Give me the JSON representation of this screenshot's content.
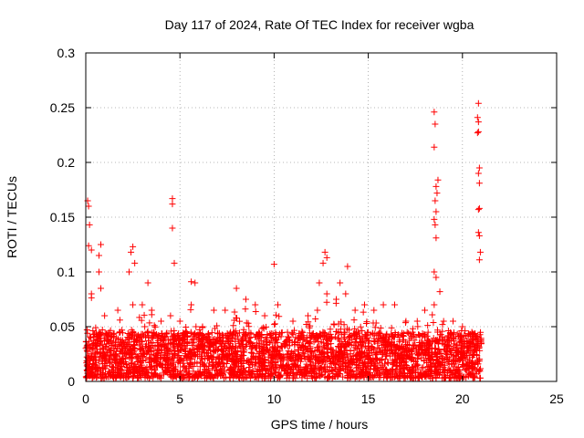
{
  "chart_data": {
    "type": "scatter",
    "title": "Day 117 of 2024, Rate Of TEC Index for receiver wgba",
    "xlabel": "GPS time / hours",
    "ylabel": "ROTI / TECUs",
    "xlim": [
      0,
      25
    ],
    "ylim": [
      0,
      0.3
    ],
    "xticks": [
      0,
      5,
      10,
      15,
      20,
      25
    ],
    "yticks": [
      0,
      0.05,
      0.1,
      0.15,
      0.2,
      0.25,
      0.3
    ],
    "xtick_labels": [
      "0",
      "5",
      "10",
      "15",
      "20",
      "25"
    ],
    "ytick_labels": [
      "0",
      "0.05",
      "0.1",
      "0.15",
      "0.2",
      "0.25",
      "0.3"
    ],
    "grid": true,
    "marker": "+",
    "color": "#ff0000",
    "series": [
      {
        "name": "ROTI",
        "notable_points": [
          {
            "x": 0.1,
            "y": 0.165
          },
          {
            "x": 0.15,
            "y": 0.16
          },
          {
            "x": 0.2,
            "y": 0.143
          },
          {
            "x": 0.15,
            "y": 0.124
          },
          {
            "x": 0.3,
            "y": 0.12
          },
          {
            "x": 0.8,
            "y": 0.125
          },
          {
            "x": 0.7,
            "y": 0.115
          },
          {
            "x": 0.7,
            "y": 0.1
          },
          {
            "x": 2.5,
            "y": 0.123
          },
          {
            "x": 2.4,
            "y": 0.118
          },
          {
            "x": 2.6,
            "y": 0.108
          },
          {
            "x": 2.3,
            "y": 0.1
          },
          {
            "x": 3.3,
            "y": 0.09
          },
          {
            "x": 4.6,
            "y": 0.167
          },
          {
            "x": 4.6,
            "y": 0.162
          },
          {
            "x": 4.6,
            "y": 0.14
          },
          {
            "x": 4.7,
            "y": 0.108
          },
          {
            "x": 5.6,
            "y": 0.091
          },
          {
            "x": 5.8,
            "y": 0.09
          },
          {
            "x": 10.0,
            "y": 0.107
          },
          {
            "x": 12.7,
            "y": 0.118
          },
          {
            "x": 12.8,
            "y": 0.113
          },
          {
            "x": 12.6,
            "y": 0.108
          },
          {
            "x": 12.4,
            "y": 0.09
          },
          {
            "x": 13.9,
            "y": 0.105
          },
          {
            "x": 13.5,
            "y": 0.09
          },
          {
            "x": 18.5,
            "y": 0.246
          },
          {
            "x": 18.55,
            "y": 0.235
          },
          {
            "x": 18.5,
            "y": 0.214
          },
          {
            "x": 18.7,
            "y": 0.184
          },
          {
            "x": 18.6,
            "y": 0.178
          },
          {
            "x": 18.65,
            "y": 0.172
          },
          {
            "x": 18.55,
            "y": 0.165
          },
          {
            "x": 18.6,
            "y": 0.155
          },
          {
            "x": 18.5,
            "y": 0.148
          },
          {
            "x": 18.55,
            "y": 0.143
          },
          {
            "x": 18.6,
            "y": 0.131
          },
          {
            "x": 18.5,
            "y": 0.1
          },
          {
            "x": 18.6,
            "y": 0.095
          },
          {
            "x": 18.8,
            "y": 0.082
          },
          {
            "x": 20.85,
            "y": 0.254
          },
          {
            "x": 20.8,
            "y": 0.241
          },
          {
            "x": 20.85,
            "y": 0.237
          },
          {
            "x": 20.85,
            "y": 0.228
          },
          {
            "x": 20.8,
            "y": 0.227
          },
          {
            "x": 20.9,
            "y": 0.195
          },
          {
            "x": 20.85,
            "y": 0.19
          },
          {
            "x": 20.9,
            "y": 0.181
          },
          {
            "x": 20.9,
            "y": 0.158
          },
          {
            "x": 20.85,
            "y": 0.157
          },
          {
            "x": 20.85,
            "y": 0.136
          },
          {
            "x": 20.9,
            "y": 0.133
          },
          {
            "x": 20.95,
            "y": 0.118
          },
          {
            "x": 20.9,
            "y": 0.111
          }
        ],
        "dense_cloud": {
          "x_range": [
            0,
            21.0
          ],
          "y_baseline": 0.02,
          "y_band": [
            0.003,
            0.045
          ],
          "local_maxima": [
            {
              "x": 0.3,
              "y": 0.08
            },
            {
              "x": 0.8,
              "y": 0.085
            },
            {
              "x": 1.0,
              "y": 0.06
            },
            {
              "x": 1.7,
              "y": 0.065
            },
            {
              "x": 2.5,
              "y": 0.07
            },
            {
              "x": 3.0,
              "y": 0.07
            },
            {
              "x": 3.5,
              "y": 0.065
            },
            {
              "x": 4.0,
              "y": 0.055
            },
            {
              "x": 4.5,
              "y": 0.06
            },
            {
              "x": 5.0,
              "y": 0.055
            },
            {
              "x": 5.6,
              "y": 0.07
            },
            {
              "x": 6.2,
              "y": 0.05
            },
            {
              "x": 6.8,
              "y": 0.065
            },
            {
              "x": 7.4,
              "y": 0.065
            },
            {
              "x": 8.0,
              "y": 0.085
            },
            {
              "x": 8.5,
              "y": 0.075
            },
            {
              "x": 9.0,
              "y": 0.07
            },
            {
              "x": 9.5,
              "y": 0.06
            },
            {
              "x": 10.2,
              "y": 0.07
            },
            {
              "x": 11.0,
              "y": 0.055
            },
            {
              "x": 11.8,
              "y": 0.06
            },
            {
              "x": 12.3,
              "y": 0.065
            },
            {
              "x": 12.8,
              "y": 0.08
            },
            {
              "x": 13.3,
              "y": 0.075
            },
            {
              "x": 13.8,
              "y": 0.08
            },
            {
              "x": 14.3,
              "y": 0.065
            },
            {
              "x": 14.8,
              "y": 0.07
            },
            {
              "x": 15.3,
              "y": 0.065
            },
            {
              "x": 15.8,
              "y": 0.07
            },
            {
              "x": 16.4,
              "y": 0.07
            },
            {
              "x": 17.0,
              "y": 0.055
            },
            {
              "x": 17.6,
              "y": 0.055
            },
            {
              "x": 18.0,
              "y": 0.065
            },
            {
              "x": 18.5,
              "y": 0.07
            },
            {
              "x": 19.0,
              "y": 0.055
            },
            {
              "x": 19.5,
              "y": 0.055
            },
            {
              "x": 20.0,
              "y": 0.05
            },
            {
              "x": 20.5,
              "y": 0.045
            },
            {
              "x": 21.0,
              "y": 0.035
            }
          ],
          "approx_point_count": 3200
        }
      }
    ]
  }
}
